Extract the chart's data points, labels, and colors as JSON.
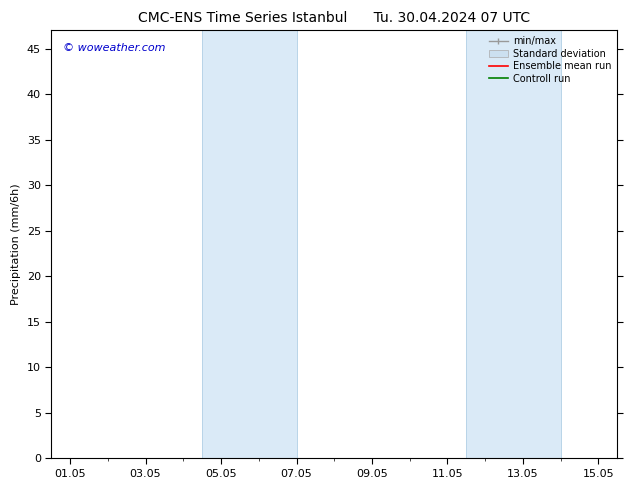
{
  "title": "CMC-ENS Time Series Istanbul",
  "title2": "Tu. 30.04.2024 07 UTC",
  "ylabel": "Precipitation (mm/6h)",
  "watermark": "© woweather.com",
  "watermark_color": "#0000cc",
  "ylim": [
    0,
    47
  ],
  "yticks": [
    0,
    5,
    10,
    15,
    20,
    25,
    30,
    35,
    40,
    45
  ],
  "xtick_labels": [
    "01.05",
    "03.05",
    "05.05",
    "07.05",
    "09.05",
    "11.05",
    "13.05",
    "15.05"
  ],
  "xtick_positions": [
    0,
    2,
    4,
    6,
    8,
    10,
    12,
    14
  ],
  "xlim": [
    -0.5,
    14.5
  ],
  "shaded_regions": [
    {
      "x_start": 3.5,
      "x_end": 6.0,
      "color": "#daeaf7"
    },
    {
      "x_start": 10.5,
      "x_end": 13.0,
      "color": "#daeaf7"
    }
  ],
  "background_color": "#ffffff",
  "legend_items": [
    {
      "label": "min/max",
      "color": "#aaaaaa",
      "style": "line_with_caps"
    },
    {
      "label": "Standard deviation",
      "color": "#cce0f0",
      "style": "filled_box"
    },
    {
      "label": "Ensemble mean run",
      "color": "#ff0000",
      "style": "line"
    },
    {
      "label": "Controll run",
      "color": "#008000",
      "style": "line"
    }
  ],
  "font_size": 8,
  "title_font_size": 10,
  "watermark_font_size": 8
}
